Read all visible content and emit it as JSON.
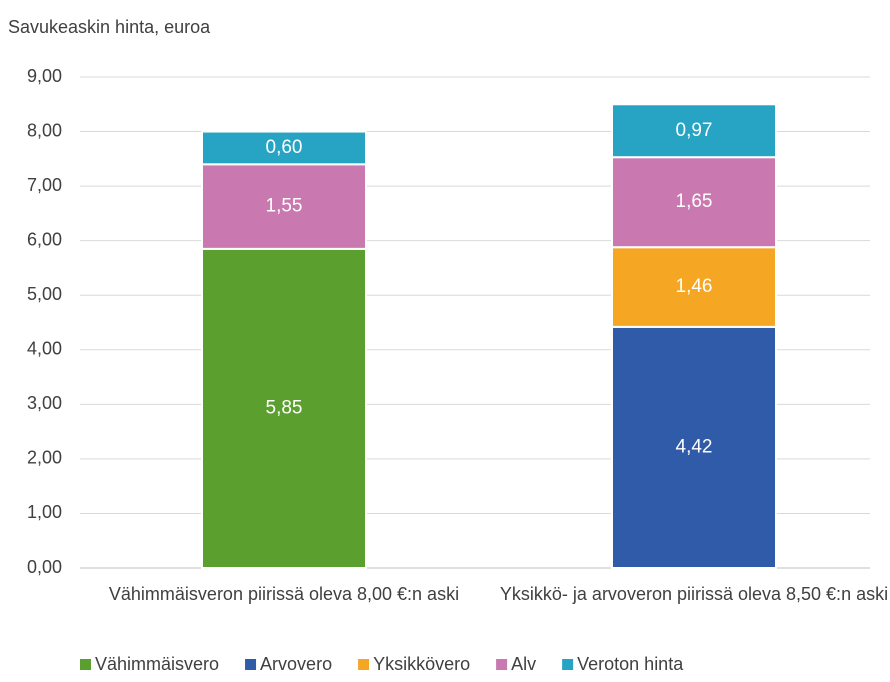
{
  "chart_data": {
    "type": "stacked_bar",
    "title": "Savukeaskin hinta, euroa",
    "categories": [
      "Vähimmäisveron piirissä oleva 8,00 €:n aski",
      "Yksikkö- ja arvoveron piirissä oleva 8,50 €:n aski"
    ],
    "series": [
      {
        "name": "Vähimmäisvero",
        "color": "#5b9f2f",
        "values": [
          5.85,
          null
        ],
        "value_labels": [
          "5,85",
          null
        ]
      },
      {
        "name": "Arvovero",
        "color": "#2f5ba8",
        "values": [
          null,
          4.42
        ],
        "value_labels": [
          null,
          "4,42"
        ]
      },
      {
        "name": "Yksikkövero",
        "color": "#f5a623",
        "values": [
          null,
          1.46
        ],
        "value_labels": [
          null,
          "1,46"
        ]
      },
      {
        "name": "Alv",
        "color": "#c978b0",
        "values": [
          1.55,
          1.65
        ],
        "value_labels": [
          "1,55",
          "1,65"
        ]
      },
      {
        "name": "Veroton hinta",
        "color": "#27a3c4",
        "values": [
          0.6,
          0.97
        ],
        "value_labels": [
          "0,60",
          "0,97"
        ]
      }
    ],
    "ylim": [
      0,
      9
    ],
    "yticks": [
      {
        "value": 0,
        "label": "0,00"
      },
      {
        "value": 1,
        "label": "1,00"
      },
      {
        "value": 2,
        "label": "2,00"
      },
      {
        "value": 3,
        "label": "3,00"
      },
      {
        "value": 4,
        "label": "4,00"
      },
      {
        "value": 5,
        "label": "5,00"
      },
      {
        "value": 6,
        "label": "6,00"
      },
      {
        "value": 7,
        "label": "7,00"
      },
      {
        "value": 8,
        "label": "8,00"
      },
      {
        "value": 9,
        "label": "9,00"
      }
    ],
    "grid": true,
    "legend": "bottom"
  }
}
